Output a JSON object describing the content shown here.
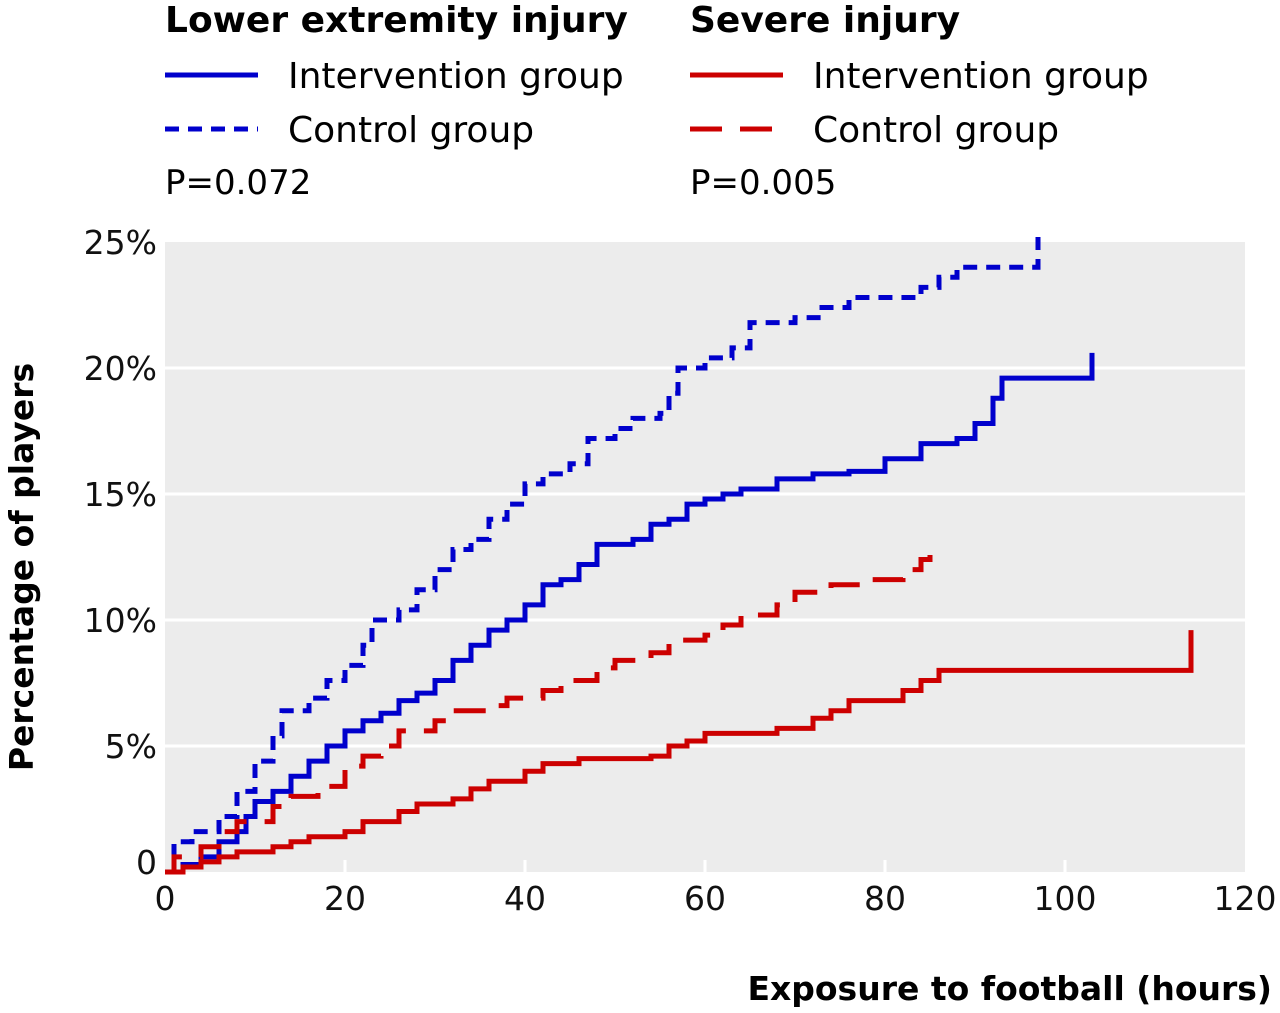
{
  "legend": {
    "groups": [
      {
        "heading": "Lower extremity injury",
        "color": "#0000cc",
        "entries": [
          {
            "label": "Intervention group",
            "style": "solid"
          },
          {
            "label": "Control group",
            "style": "dashed-short"
          }
        ],
        "p_value": "P=0.072"
      },
      {
        "heading": "Severe injury",
        "color": "#cc0000",
        "entries": [
          {
            "label": "Intervention group",
            "style": "solid"
          },
          {
            "label": "Control group",
            "style": "dashed-long"
          }
        ],
        "p_value": "P=0.005"
      }
    ]
  },
  "chart_data": {
    "type": "line",
    "step": true,
    "title": "",
    "xlabel": "Exposure to football (hours)",
    "ylabel": "Percentage of players",
    "xlim": [
      0,
      120
    ],
    "ylim": [
      0,
      25
    ],
    "xticks": [
      0,
      20,
      40,
      60,
      80,
      100,
      120
    ],
    "xtick_labels": [
      "0",
      "20",
      "40",
      "60",
      "80",
      "100",
      "120"
    ],
    "yticks": [
      0,
      5,
      10,
      15,
      20,
      25
    ],
    "ytick_labels": [
      "0",
      "5%",
      "10%",
      "15%",
      "20%",
      "25%"
    ],
    "grid": "horizontal",
    "plot_background": "#ececec",
    "series": [
      {
        "name": "Lower extremity injury - Intervention group",
        "color": "#0000cc",
        "dash": "solid",
        "points": [
          [
            0,
            0
          ],
          [
            1,
            0
          ],
          [
            2,
            0.3
          ],
          [
            4,
            0.6
          ],
          [
            6,
            1.2
          ],
          [
            8,
            1.6
          ],
          [
            9,
            2.2
          ],
          [
            10,
            2.8
          ],
          [
            12,
            3.2
          ],
          [
            14,
            3.8
          ],
          [
            16,
            4.4
          ],
          [
            18,
            5.0
          ],
          [
            20,
            5.6
          ],
          [
            22,
            6.0
          ],
          [
            24,
            6.3
          ],
          [
            26,
            6.8
          ],
          [
            28,
            7.1
          ],
          [
            30,
            7.6
          ],
          [
            32,
            8.4
          ],
          [
            34,
            9.0
          ],
          [
            36,
            9.6
          ],
          [
            38,
            10.0
          ],
          [
            40,
            10.6
          ],
          [
            42,
            11.4
          ],
          [
            44,
            11.6
          ],
          [
            46,
            12.2
          ],
          [
            48,
            13.0
          ],
          [
            50,
            13.0
          ],
          [
            52,
            13.2
          ],
          [
            54,
            13.8
          ],
          [
            56,
            14.0
          ],
          [
            58,
            14.6
          ],
          [
            60,
            14.8
          ],
          [
            62,
            15.0
          ],
          [
            64,
            15.2
          ],
          [
            66,
            15.2
          ],
          [
            68,
            15.6
          ],
          [
            72,
            15.8
          ],
          [
            76,
            15.9
          ],
          [
            80,
            16.4
          ],
          [
            84,
            17.0
          ],
          [
            88,
            17.2
          ],
          [
            90,
            17.8
          ],
          [
            92,
            18.8
          ],
          [
            93,
            19.6
          ],
          [
            100,
            19.6
          ],
          [
            103,
            19.6
          ],
          [
            103,
            20.6
          ]
        ]
      },
      {
        "name": "Lower extremity injury - Control group",
        "color": "#0000cc",
        "dash": "short",
        "points": [
          [
            0,
            0
          ],
          [
            1,
            0
          ],
          [
            1,
            1.2
          ],
          [
            3,
            1.6
          ],
          [
            6,
            2.2
          ],
          [
            8,
            3.2
          ],
          [
            10,
            4.4
          ],
          [
            12,
            5.4
          ],
          [
            13,
            6.4
          ],
          [
            16,
            6.9
          ],
          [
            18,
            7.6
          ],
          [
            20,
            8.2
          ],
          [
            22,
            9.0
          ],
          [
            23,
            10.0
          ],
          [
            26,
            10.4
          ],
          [
            28,
            11.2
          ],
          [
            30,
            12.0
          ],
          [
            32,
            12.8
          ],
          [
            34,
            13.2
          ],
          [
            36,
            14.0
          ],
          [
            38,
            14.6
          ],
          [
            40,
            15.4
          ],
          [
            42,
            15.8
          ],
          [
            45,
            16.2
          ],
          [
            47,
            17.2
          ],
          [
            50,
            17.6
          ],
          [
            52,
            18.0
          ],
          [
            55,
            18.2
          ],
          [
            56,
            19.0
          ],
          [
            57,
            20.0
          ],
          [
            60,
            20.4
          ],
          [
            63,
            20.8
          ],
          [
            65,
            21.8
          ],
          [
            70,
            22.0
          ],
          [
            73,
            22.4
          ],
          [
            76,
            22.8
          ],
          [
            84,
            23.2
          ],
          [
            86,
            23.6
          ],
          [
            88,
            24.0
          ],
          [
            97,
            24.0
          ],
          [
            97,
            25.2
          ]
        ]
      },
      {
        "name": "Severe injury - Intervention group",
        "color": "#cc0000",
        "dash": "solid",
        "points": [
          [
            0,
            0
          ],
          [
            1,
            0
          ],
          [
            2,
            0.2
          ],
          [
            4,
            0.4
          ],
          [
            6,
            0.6
          ],
          [
            8,
            0.8
          ],
          [
            12,
            1.0
          ],
          [
            14,
            1.2
          ],
          [
            16,
            1.4
          ],
          [
            20,
            1.6
          ],
          [
            22,
            2.0
          ],
          [
            26,
            2.4
          ],
          [
            28,
            2.7
          ],
          [
            32,
            2.9
          ],
          [
            34,
            3.3
          ],
          [
            36,
            3.6
          ],
          [
            40,
            4.0
          ],
          [
            42,
            4.3
          ],
          [
            46,
            4.5
          ],
          [
            54,
            4.6
          ],
          [
            56,
            5.0
          ],
          [
            58,
            5.2
          ],
          [
            60,
            5.5
          ],
          [
            68,
            5.7
          ],
          [
            72,
            6.1
          ],
          [
            74,
            6.4
          ],
          [
            76,
            6.8
          ],
          [
            82,
            7.2
          ],
          [
            84,
            7.6
          ],
          [
            86,
            8.0
          ],
          [
            114,
            8.0
          ],
          [
            114,
            9.6
          ]
        ]
      },
      {
        "name": "Severe injury - Control group",
        "color": "#cc0000",
        "dash": "long",
        "points": [
          [
            0,
            0
          ],
          [
            1,
            0
          ],
          [
            1,
            0.6
          ],
          [
            4,
            1.0
          ],
          [
            6,
            1.6
          ],
          [
            8,
            2.0
          ],
          [
            12,
            2.6
          ],
          [
            14,
            3.0
          ],
          [
            17,
            3.4
          ],
          [
            20,
            4.2
          ],
          [
            22,
            4.6
          ],
          [
            24,
            5.0
          ],
          [
            26,
            5.6
          ],
          [
            30,
            6.0
          ],
          [
            32,
            6.4
          ],
          [
            36,
            6.6
          ],
          [
            38,
            6.9
          ],
          [
            42,
            7.2
          ],
          [
            44,
            7.6
          ],
          [
            48,
            8.1
          ],
          [
            50,
            8.4
          ],
          [
            54,
            8.7
          ],
          [
            56,
            9.2
          ],
          [
            60,
            9.4
          ],
          [
            62,
            9.8
          ],
          [
            64,
            10.2
          ],
          [
            68,
            10.6
          ],
          [
            70,
            11.1
          ],
          [
            74,
            11.4
          ],
          [
            78,
            11.6
          ],
          [
            82,
            12.0
          ],
          [
            84,
            12.4
          ],
          [
            85,
            12.6
          ],
          [
            85,
            13.2
          ]
        ]
      }
    ]
  }
}
